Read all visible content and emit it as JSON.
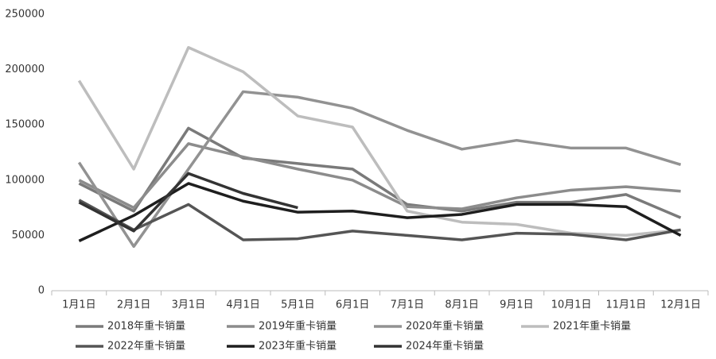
{
  "chart_data": {
    "type": "line",
    "categories": [
      "1月1日",
      "2月1日",
      "3月1日",
      "4月1日",
      "5月1日",
      "6月1日",
      "7月1日",
      "8月1日",
      "9月1日",
      "10月1日",
      "11月1日",
      "12月1日"
    ],
    "series": [
      {
        "name": "2018年重卡销量",
        "color": "#7a7a7a",
        "values": [
          97000,
          72000,
          147000,
          120000,
          115000,
          110000,
          78000,
          72000,
          80000,
          80000,
          87000,
          66000
        ]
      },
      {
        "name": "2019年重卡销量",
        "color": "#8c8c8c",
        "values": [
          100000,
          75000,
          133000,
          121000,
          110000,
          100000,
          76000,
          74000,
          84000,
          91000,
          94000,
          90000
        ]
      },
      {
        "name": "2020年重卡销量",
        "color": "#929292",
        "values": [
          116000,
          40000,
          110000,
          180000,
          175000,
          165000,
          145000,
          128000,
          136000,
          129000,
          129000,
          114000
        ]
      },
      {
        "name": "2021年重卡销量",
        "color": "#bdbdbd",
        "values": [
          190000,
          110000,
          220000,
          198000,
          158000,
          148000,
          72000,
          62000,
          60000,
          52000,
          50000,
          55000
        ]
      },
      {
        "name": "2022年重卡销量",
        "color": "#555555",
        "values": [
          82000,
          55000,
          78000,
          46000,
          47000,
          54000,
          50000,
          46000,
          52000,
          51000,
          46000,
          55000
        ]
      },
      {
        "name": "2023年重卡销量",
        "color": "#1e1e1e",
        "values": [
          45000,
          68000,
          97000,
          81000,
          71000,
          72000,
          66000,
          69000,
          78000,
          78000,
          76000,
          50000
        ]
      },
      {
        "name": "2024年重卡销量",
        "color": "#333333",
        "values": [
          80000,
          54000,
          106000,
          88000,
          75000,
          null,
          null,
          null,
          null,
          null,
          null,
          null
        ]
      }
    ],
    "ylim": [
      0,
      250000
    ],
    "yticks": [
      0,
      50000,
      100000,
      150000,
      200000,
      250000
    ]
  }
}
